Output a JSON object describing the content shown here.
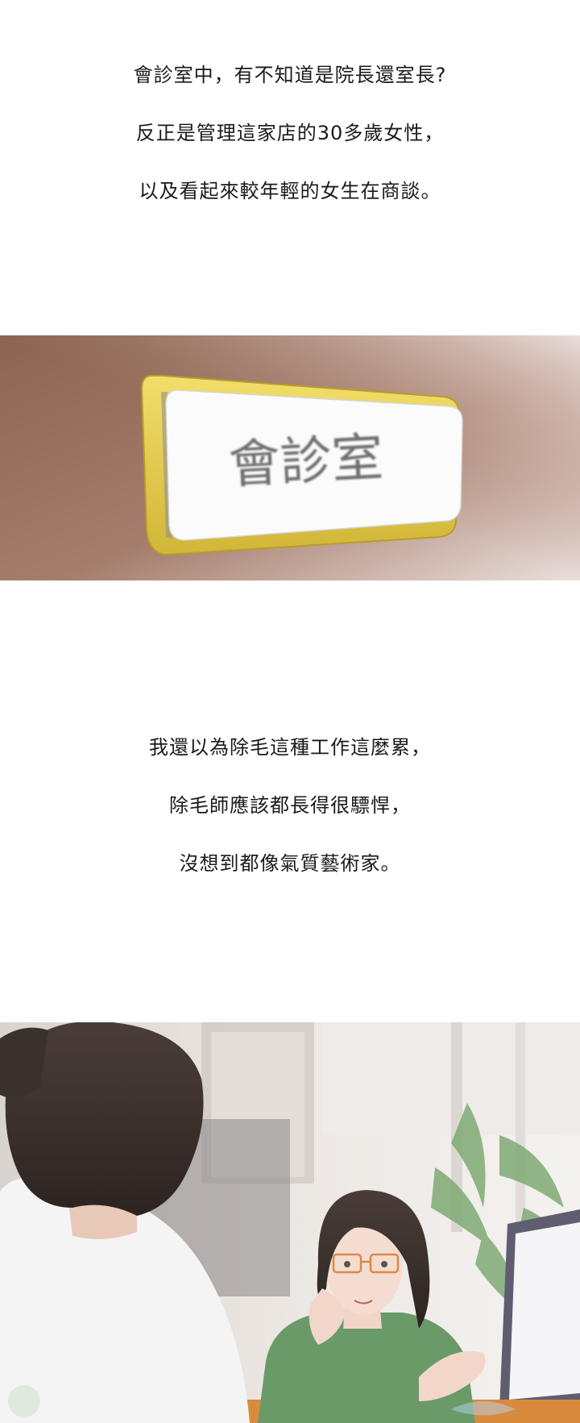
{
  "captions_top": [
    "會診室中，有不知道是院長還室長?",
    "反正是管理這家店的30多歲女性，",
    "以及看起來較年輕的女生在商談。"
  ],
  "sign_text": "會診室",
  "captions_middle": [
    "我還以為除毛這種工作這麼累，",
    "除毛師應該都長得很驃悍，",
    "沒想到都像氣質藝術家。"
  ],
  "colors": {
    "wall_dark": "#8a6250",
    "wall_light": "#e9dcd8",
    "sign_frame": "#e4cc48",
    "sign_face": "#fbfbfb",
    "sign_text": "#6b6b6b",
    "shirt_green": "#6a9a68",
    "table_orange": "#d98a3c"
  }
}
